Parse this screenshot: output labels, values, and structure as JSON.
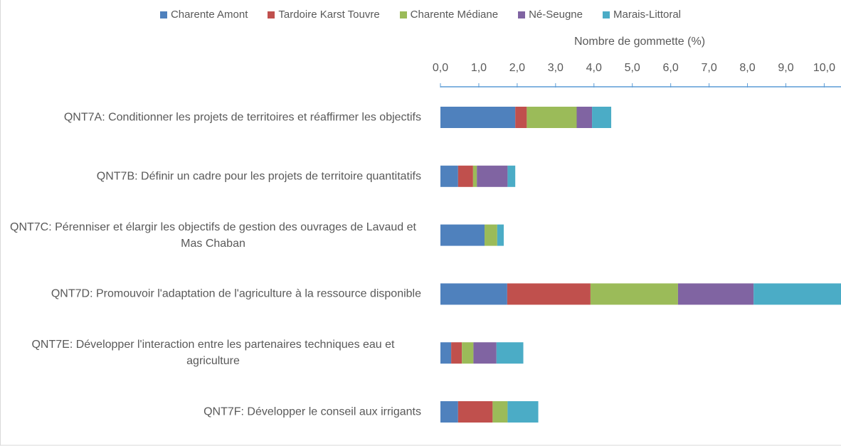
{
  "chart_data": {
    "type": "bar",
    "orientation": "horizontal",
    "stacked": true,
    "x_label": "Nombre de gommette (%)",
    "categories": [
      "QNT7A: Conditionner les projets de territoires et réaffirmer les objectifs",
      "QNT7B: Définir un cadre pour les projets de territoire quantitatifs",
      "QNT7C: Pérenniser et élargir les objectifs de gestion des ouvrages de Lavaud et Mas Chaban",
      "QNT7D: Promouvoir l'adaptation de l'agriculture à la ressource disponible",
      "QNT7E: Développer l'interaction entre les partenaires techniques eau et agriculture",
      "QNT7F: Développer le conseil aux irrigants"
    ],
    "series": [
      {
        "name": "Charente Amont",
        "color": "#4f81bd",
        "values": [
          1.95,
          0.46,
          1.15,
          1.74,
          0.28,
          0.46
        ]
      },
      {
        "name": "Tardoire Karst Touvre",
        "color": "#c0504d",
        "values": [
          0.3,
          0.39,
          0,
          2.17,
          0.28,
          0.9
        ]
      },
      {
        "name": "Charente Médiane",
        "color": "#9bbb59",
        "values": [
          1.3,
          0.1,
          0.33,
          2.28,
          0.3,
          0.39
        ]
      },
      {
        "name": "Né-Seugne",
        "color": "#8064a2",
        "values": [
          0.4,
          0.8,
          0,
          1.97,
          0.6,
          0
        ]
      },
      {
        "name": "Marais-Littoral",
        "color": "#4bacc6",
        "values": [
          0.5,
          0.2,
          0.17,
          2.3,
          0.7,
          0.8
        ]
      }
    ],
    "xlim": [
      0,
      10.4
    ],
    "xticks": [
      {
        "value": 0,
        "label": "0,0"
      },
      {
        "value": 1,
        "label": "1,0"
      },
      {
        "value": 2,
        "label": "2,0"
      },
      {
        "value": 3,
        "label": "3,0"
      },
      {
        "value": 4,
        "label": "4,0"
      },
      {
        "value": 5,
        "label": "5,0"
      },
      {
        "value": 6,
        "label": "6,0"
      },
      {
        "value": 7,
        "label": "7,0"
      },
      {
        "value": 8,
        "label": "8,0"
      },
      {
        "value": 9,
        "label": "9,0"
      },
      {
        "value": 10,
        "label": "10,0"
      }
    ],
    "axis_position": "top",
    "legend": "top"
  }
}
